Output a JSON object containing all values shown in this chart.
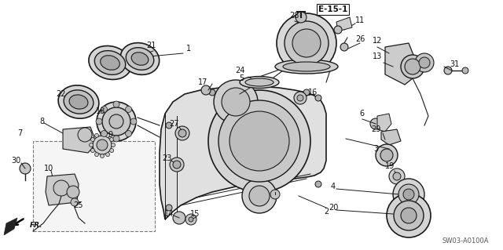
{
  "bg_color": "#ffffff",
  "diagram_code": "SW03-A0100A",
  "ref_label": "E-15-1",
  "fr_label": "FR.",
  "line_color": "#1a1a1a",
  "text_color": "#111111",
  "gray_light": "#d8d8d8",
  "gray_mid": "#b0b0b0",
  "gray_dark": "#888888",
  "figsize": [
    6.4,
    3.19
  ],
  "dpi": 100
}
